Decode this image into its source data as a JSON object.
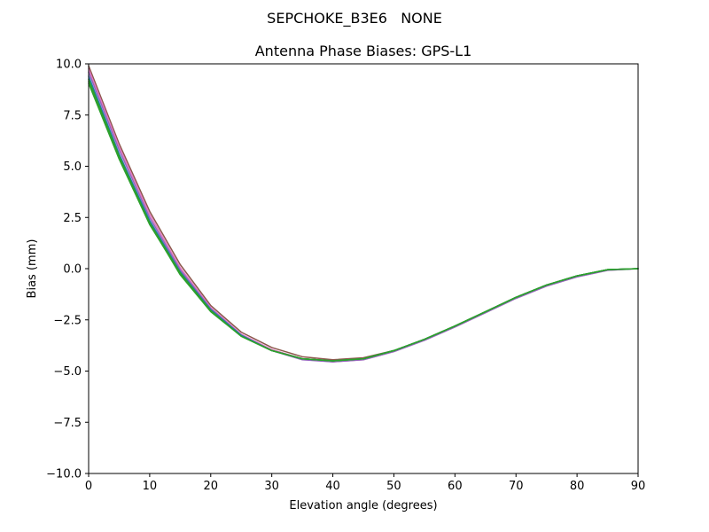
{
  "figure": {
    "suptitle": "SEPCHOKE_B3E6   NONE"
  },
  "chart_data": {
    "type": "line",
    "title": "Antenna Phase Biases: GPS-L1",
    "xlabel": "Elevation angle (degrees)",
    "ylabel": "Bias (mm)",
    "xlim": [
      0,
      90
    ],
    "ylim": [
      -10,
      10
    ],
    "xticks": [
      0,
      10,
      20,
      30,
      40,
      50,
      60,
      70,
      80,
      90
    ],
    "xtick_labels": [
      "0",
      "10",
      "20",
      "30",
      "40",
      "50",
      "60",
      "70",
      "80",
      "90"
    ],
    "yticks": [
      -10,
      -7.5,
      -5,
      -2.5,
      0,
      2.5,
      5,
      7.5,
      10
    ],
    "ytick_labels": [
      "−10.0",
      "−7.5",
      "−5.0",
      "−2.5",
      "0.0",
      "2.5",
      "5.0",
      "7.5",
      "10.0"
    ],
    "grid": false,
    "x": [
      0,
      5,
      10,
      15,
      20,
      25,
      30,
      35,
      40,
      45,
      50,
      55,
      60,
      65,
      70,
      75,
      80,
      85,
      90
    ],
    "series": [
      {
        "color": "#8c564b",
        "values": [
          9.9,
          6.1,
          2.8,
          0.2,
          -1.8,
          -3.1,
          -3.85,
          -4.3,
          -4.45,
          -4.35,
          -4.0,
          -3.45,
          -2.8,
          -2.1,
          -1.4,
          -0.8,
          -0.35,
          -0.05,
          0.0
        ]
      },
      {
        "color": "#e377c2",
        "values": [
          9.75,
          5.95,
          2.65,
          0.05,
          -1.9,
          -3.2,
          -3.95,
          -4.4,
          -4.55,
          -4.45,
          -4.05,
          -3.5,
          -2.85,
          -2.15,
          -1.45,
          -0.85,
          -0.4,
          -0.08,
          0.0
        ]
      },
      {
        "color": "#9467bd",
        "values": [
          9.6,
          5.8,
          2.5,
          -0.05,
          -1.95,
          -3.25,
          -4.0,
          -4.45,
          -4.55,
          -4.45,
          -4.05,
          -3.5,
          -2.85,
          -2.15,
          -1.45,
          -0.85,
          -0.4,
          -0.08,
          0.0
        ]
      },
      {
        "color": "#1f77b4",
        "values": [
          9.4,
          5.6,
          2.35,
          -0.15,
          -2.0,
          -3.25,
          -4.0,
          -4.4,
          -4.5,
          -4.4,
          -4.0,
          -3.45,
          -2.8,
          -2.1,
          -1.4,
          -0.8,
          -0.35,
          -0.05,
          0.0
        ]
      },
      {
        "color": "#2ca02c",
        "values": [
          9.25,
          5.5,
          2.25,
          -0.2,
          -2.05,
          -3.3,
          -4.0,
          -4.4,
          -4.5,
          -4.4,
          -4.0,
          -3.45,
          -2.8,
          -2.1,
          -1.4,
          -0.8,
          -0.35,
          -0.05,
          0.0
        ]
      },
      {
        "color": "#2ca02c",
        "values": [
          9.05,
          5.35,
          2.15,
          -0.25,
          -2.05,
          -3.3,
          -4.0,
          -4.4,
          -4.5,
          -4.4,
          -4.0,
          -3.45,
          -2.8,
          -2.1,
          -1.4,
          -0.8,
          -0.35,
          -0.05,
          0.0
        ]
      },
      {
        "color": "#2ca02c",
        "values": [
          9.15,
          5.4,
          2.2,
          -0.3,
          -2.1,
          -3.3,
          -4.0,
          -4.4,
          -4.5,
          -4.4,
          -4.0,
          -3.45,
          -2.8,
          -2.1,
          -1.4,
          -0.8,
          -0.35,
          -0.05,
          0.0
        ]
      }
    ]
  }
}
